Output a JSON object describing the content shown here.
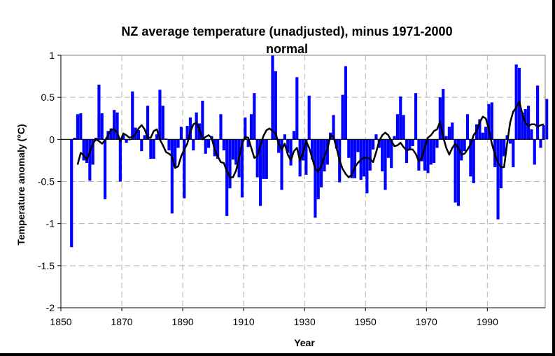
{
  "chart_data": {
    "type": "bar",
    "title_line1": "NZ average temperature (unadjusted), minus 1971-2000",
    "title_line2": "normal",
    "xlabel": "Year",
    "ylabel": "Temperature anomaly (°C)",
    "xlim": [
      1850,
      2009
    ],
    "ylim": [
      -2,
      1
    ],
    "x_ticks": [
      1850,
      1870,
      1890,
      1910,
      1930,
      1950,
      1970,
      1990
    ],
    "y_ticks": [
      1,
      0.5,
      0,
      -0.5,
      -1,
      -1.5,
      -2
    ],
    "grid": true,
    "colors": {
      "bars": "#0000ff",
      "line": "#000000",
      "grid": "#b3b3b3",
      "frame": "#000000"
    },
    "series": [
      {
        "type": "bar",
        "start_year": 1853,
        "values": [
          -1.28,
          0.02,
          0.3,
          0.31,
          -0.25,
          -0.28,
          -0.49,
          -0.3,
          0.02,
          0.65,
          0.31,
          -0.71,
          0.1,
          0.13,
          0.35,
          0.32,
          -0.5,
          0.05,
          -0.04,
          -0.01,
          0.57,
          0.14,
          0.11,
          -0.14,
          0.05,
          0.4,
          -0.23,
          -0.23,
          0.06,
          0.59,
          0.4,
          0.01,
          -0.13,
          -0.88,
          -0.32,
          -0.1,
          0.15,
          -0.7,
          0.16,
          0.26,
          -0.13,
          0.32,
          0.19,
          0.46,
          -0.17,
          -0.1,
          0.04,
          -0.2,
          -0.23,
          0.3,
          -0.13,
          -0.91,
          -0.58,
          -0.24,
          -0.3,
          -0.45,
          -0.69,
          0.26,
          -0.09,
          0.3,
          0.55,
          -0.45,
          -0.79,
          -0.47,
          -0.47,
          0.0,
          1.0,
          0.81,
          -0.16,
          -0.6,
          0.06,
          -0.16,
          -0.31,
          0.1,
          0.74,
          -0.44,
          -0.25,
          -0.42,
          0.52,
          -0.24,
          -0.93,
          -0.71,
          -0.57,
          -0.38,
          -0.3,
          0.08,
          0.29,
          -0.11,
          -0.51,
          0.53,
          0.87,
          -0.22,
          -0.46,
          -0.46,
          -0.15,
          -0.48,
          -0.44,
          -0.64,
          -0.37,
          -0.12,
          0.06,
          -0.1,
          -0.38,
          -0.6,
          -0.22,
          -0.34,
          0.04,
          0.3,
          0.51,
          0.29,
          -0.28,
          -0.12,
          -0.08,
          0.55,
          -0.37,
          -0.26,
          -0.37,
          -0.4,
          -0.3,
          -0.28,
          -0.1,
          0.5,
          0.6,
          0.04,
          0.15,
          0.2,
          -0.75,
          -0.79,
          -0.25,
          -0.14,
          0.3,
          -0.44,
          -0.52,
          0.18,
          0.24,
          0.08,
          0.15,
          0.42,
          0.44,
          -0.33,
          -0.95,
          -0.58,
          -0.2,
          0.05,
          -0.05,
          -0.33,
          0.89,
          0.85,
          0.32,
          0.36,
          0.4,
          0.12,
          -0.3,
          0.64,
          -0.1,
          0.17,
          0.48
        ]
      },
      {
        "type": "line",
        "name": "",
        "points": [
          [
            1855,
            -0.3
          ],
          [
            1856,
            -0.16
          ],
          [
            1857,
            -0.19
          ],
          [
            1858,
            -0.24
          ],
          [
            1859,
            -0.15
          ],
          [
            1860,
            -0.05
          ],
          [
            1861,
            0.0
          ],
          [
            1862,
            -0.02
          ],
          [
            1863,
            -0.05
          ],
          [
            1864,
            -0.01
          ],
          [
            1865,
            0.05
          ],
          [
            1866,
            0.12
          ],
          [
            1867,
            0.12
          ],
          [
            1868,
            0.08
          ],
          [
            1869,
            -0.02
          ],
          [
            1870,
            0.07
          ],
          [
            1871,
            0.05
          ],
          [
            1872,
            0.02
          ],
          [
            1873,
            0.03
          ],
          [
            1874,
            0.06
          ],
          [
            1875,
            0.13
          ],
          [
            1876,
            0.17
          ],
          [
            1877,
            0.12
          ],
          [
            1878,
            0.02
          ],
          [
            1879,
            0.02
          ],
          [
            1880,
            0.1
          ],
          [
            1881,
            0.12
          ],
          [
            1882,
            0.0
          ],
          [
            1883,
            -0.07
          ],
          [
            1884,
            -0.15
          ],
          [
            1885,
            -0.17
          ],
          [
            1886,
            -0.2
          ],
          [
            1887,
            -0.34
          ],
          [
            1888,
            -0.32
          ],
          [
            1889,
            -0.2
          ],
          [
            1890,
            -0.12
          ],
          [
            1891,
            -0.05
          ],
          [
            1892,
            0.09
          ],
          [
            1893,
            0.18
          ],
          [
            1894,
            0.2
          ],
          [
            1895,
            0.12
          ],
          [
            1896,
            0.0
          ],
          [
            1897,
            0.03
          ],
          [
            1898,
            0.05
          ],
          [
            1899,
            0.02
          ],
          [
            1900,
            -0.12
          ],
          [
            1901,
            -0.2
          ],
          [
            1902,
            -0.27
          ],
          [
            1903,
            -0.28
          ],
          [
            1904,
            -0.38
          ],
          [
            1905,
            -0.45
          ],
          [
            1906,
            -0.45
          ],
          [
            1907,
            -0.37
          ],
          [
            1908,
            -0.22
          ],
          [
            1909,
            -0.05
          ],
          [
            1910,
            0.03
          ],
          [
            1911,
            0.02
          ],
          [
            1912,
            -0.1
          ],
          [
            1913,
            -0.22
          ],
          [
            1914,
            -0.2
          ],
          [
            1915,
            -0.07
          ],
          [
            1916,
            0.04
          ],
          [
            1917,
            0.11
          ],
          [
            1918,
            0.13
          ],
          [
            1919,
            0.1
          ],
          [
            1920,
            0.07
          ],
          [
            1921,
            -0.05
          ],
          [
            1922,
            -0.12
          ],
          [
            1923,
            -0.05
          ],
          [
            1924,
            -0.18
          ],
          [
            1925,
            -0.25
          ],
          [
            1926,
            -0.14
          ],
          [
            1927,
            -0.1
          ],
          [
            1928,
            -0.25
          ],
          [
            1929,
            -0.16
          ],
          [
            1930,
            -0.02
          ],
          [
            1931,
            -0.1
          ],
          [
            1932,
            -0.22
          ],
          [
            1933,
            -0.35
          ],
          [
            1934,
            -0.38
          ],
          [
            1935,
            -0.32
          ],
          [
            1936,
            -0.2
          ],
          [
            1937,
            -0.12
          ],
          [
            1938,
            0.05
          ],
          [
            1939,
            0.03
          ],
          [
            1940,
            -0.1
          ],
          [
            1941,
            -0.25
          ],
          [
            1942,
            -0.35
          ],
          [
            1943,
            -0.41
          ],
          [
            1944,
            -0.45
          ],
          [
            1945,
            -0.42
          ],
          [
            1946,
            -0.33
          ],
          [
            1947,
            -0.28
          ],
          [
            1948,
            -0.24
          ],
          [
            1949,
            -0.22
          ],
          [
            1950,
            -0.22
          ],
          [
            1951,
            -0.23
          ],
          [
            1952,
            -0.27
          ],
          [
            1953,
            -0.15
          ],
          [
            1954,
            -0.02
          ],
          [
            1955,
            0.05
          ],
          [
            1956,
            0.08
          ],
          [
            1957,
            0.05
          ],
          [
            1958,
            -0.02
          ],
          [
            1959,
            -0.08
          ],
          [
            1960,
            -0.07
          ],
          [
            1961,
            -0.04
          ],
          [
            1962,
            -0.09
          ],
          [
            1963,
            -0.13
          ],
          [
            1964,
            -0.12
          ],
          [
            1965,
            -0.12
          ],
          [
            1966,
            -0.17
          ],
          [
            1967,
            -0.26
          ],
          [
            1968,
            -0.22
          ],
          [
            1969,
            -0.09
          ],
          [
            1970,
            0.02
          ],
          [
            1971,
            0.05
          ],
          [
            1972,
            0.1
          ],
          [
            1973,
            0.12
          ],
          [
            1974,
            0.21
          ],
          [
            1975,
            0.03
          ],
          [
            1976,
            -0.1
          ],
          [
            1977,
            -0.18
          ],
          [
            1978,
            -0.1
          ],
          [
            1979,
            -0.05
          ],
          [
            1980,
            -0.1
          ],
          [
            1981,
            -0.18
          ],
          [
            1982,
            -0.17
          ],
          [
            1983,
            -0.12
          ],
          [
            1984,
            -0.06
          ],
          [
            1985,
            0.05
          ],
          [
            1986,
            0.1
          ],
          [
            1987,
            0.2
          ],
          [
            1988,
            0.27
          ],
          [
            1989,
            0.25
          ],
          [
            1990,
            0.12
          ],
          [
            1991,
            -0.05
          ],
          [
            1992,
            -0.18
          ],
          [
            1993,
            -0.28
          ],
          [
            1994,
            -0.33
          ],
          [
            1995,
            -0.33
          ],
          [
            1996,
            -0.05
          ],
          [
            1997,
            0.2
          ],
          [
            1998,
            0.33
          ],
          [
            1999,
            0.38
          ],
          [
            2000,
            0.45
          ],
          [
            2001,
            0.3
          ],
          [
            2002,
            0.2
          ],
          [
            2003,
            0.16
          ],
          [
            2004,
            0.18
          ],
          [
            2005,
            0.18
          ],
          [
            2006,
            0.15
          ],
          [
            2007,
            0.17
          ],
          [
            2008,
            0.18
          ]
        ]
      }
    ]
  }
}
